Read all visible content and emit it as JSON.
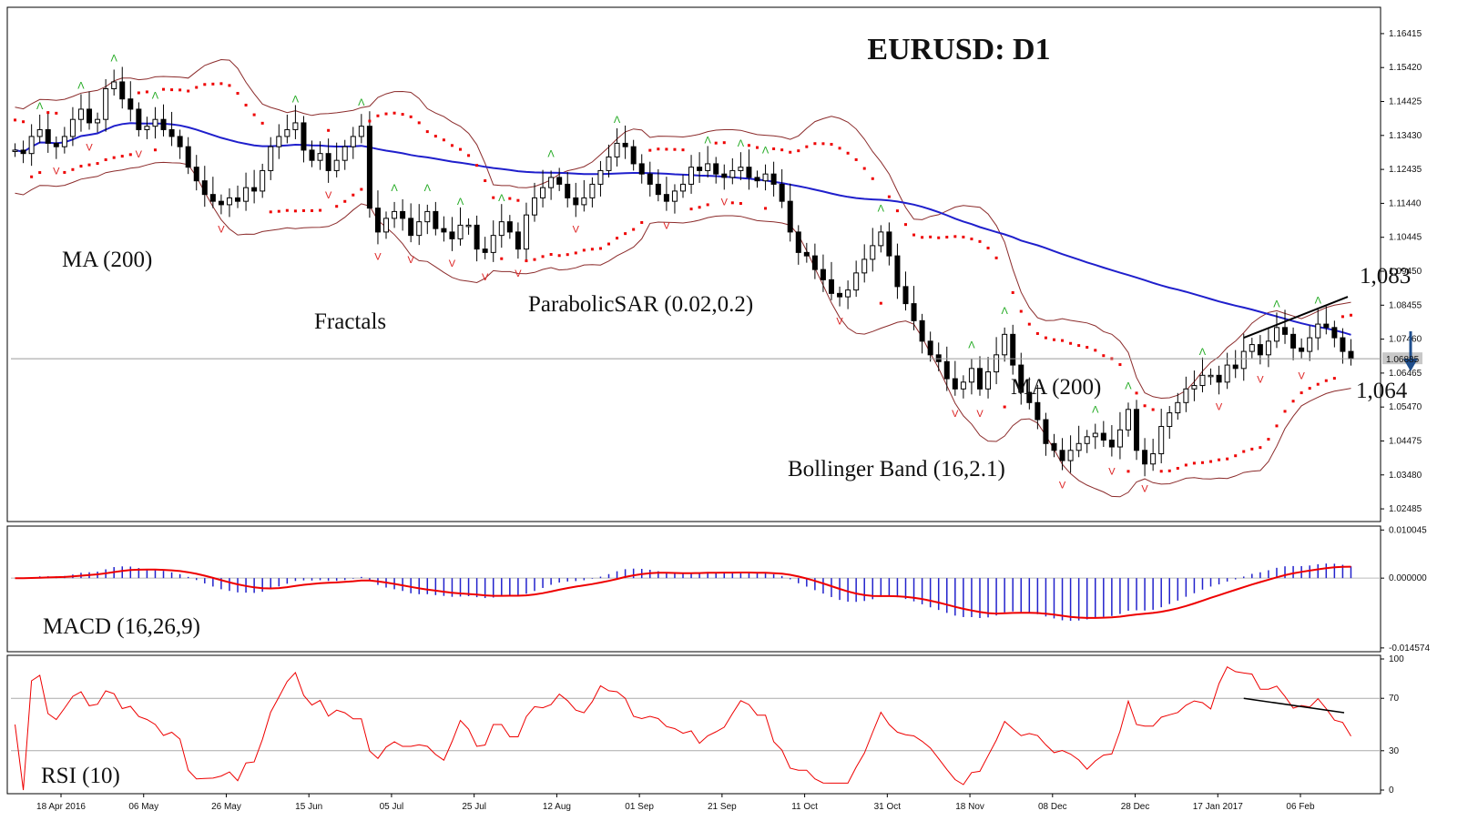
{
  "chart_data": {
    "type": "candlestick",
    "title": "EURUSD: D1",
    "x_ticks": [
      "18 Apr 2016",
      "06 May",
      "26 May",
      "15 Jun",
      "05 Jul",
      "25 Jul",
      "12 Aug",
      "01 Sep",
      "21 Sep",
      "11 Oct",
      "31 Oct",
      "18 Nov",
      "08 Dec",
      "28 Dec",
      "17 Jan 2017",
      "06 Feb"
    ],
    "price_panel": {
      "y_ticks": [
        "1.16415",
        "1.15420",
        "1.14425",
        "1.13430",
        "1.12435",
        "1.11440",
        "1.10445",
        "1.09450",
        "1.08455",
        "1.07460",
        "1.06465",
        "1.05470",
        "1.04475",
        "1.03480",
        "1.02485"
      ],
      "ylim": [
        1.0222,
        1.1708
      ],
      "current_price_label": "1.06885",
      "current_price": 1.06885,
      "closes": [
        1.13,
        1.129,
        1.134,
        1.136,
        1.132,
        1.131,
        1.134,
        1.139,
        1.142,
        1.138,
        1.139,
        1.148,
        1.15,
        1.145,
        1.142,
        1.136,
        1.137,
        1.139,
        1.136,
        1.134,
        1.131,
        1.125,
        1.121,
        1.117,
        1.115,
        1.114,
        1.116,
        1.115,
        1.119,
        1.118,
        1.124,
        1.131,
        1.134,
        1.136,
        1.138,
        1.13,
        1.127,
        1.129,
        1.124,
        1.127,
        1.131,
        1.134,
        1.137,
        1.113,
        1.106,
        1.11,
        1.112,
        1.11,
        1.105,
        1.109,
        1.112,
        1.107,
        1.106,
        1.104,
        1.108,
        1.108,
        1.101,
        1.1,
        1.105,
        1.109,
        1.106,
        1.101,
        1.111,
        1.116,
        1.119,
        1.122,
        1.12,
        1.116,
        1.114,
        1.116,
        1.12,
        1.124,
        1.128,
        1.132,
        1.131,
        1.126,
        1.123,
        1.12,
        1.117,
        1.115,
        1.118,
        1.12,
        1.125,
        1.124,
        1.126,
        1.123,
        1.122,
        1.124,
        1.125,
        1.122,
        1.121,
        1.123,
        1.12,
        1.115,
        1.106,
        1.1,
        1.099,
        1.095,
        1.092,
        1.088,
        1.087,
        1.089,
        1.094,
        1.098,
        1.102,
        1.106,
        1.099,
        1.09,
        1.085,
        1.08,
        1.074,
        1.07,
        1.068,
        1.063,
        1.06,
        1.062,
        1.066,
        1.06,
        1.065,
        1.07,
        1.076,
        1.067,
        1.059,
        1.056,
        1.051,
        1.044,
        1.042,
        1.039,
        1.042,
        1.044,
        1.046,
        1.047,
        1.045,
        1.043,
        1.048,
        1.054,
        1.042,
        1.038,
        1.041,
        1.049,
        1.053,
        1.056,
        1.06,
        1.061,
        1.064,
        1.064,
        1.062,
        1.067,
        1.066,
        1.071,
        1.073,
        1.07,
        1.074,
        1.078,
        1.076,
        1.072,
        1.071,
        1.075,
        1.079,
        1.078,
        1.075,
        1.071,
        1.06885
      ],
      "ma200_label": "MA (200)",
      "ma200_inner_label": "MA (200)",
      "fractals_label": "Fractals",
      "sar_label": "ParabolicSAR (0.02,0.2)",
      "bollinger_label": "Bollinger Band (16,2.1)",
      "resistance_label": "1,083",
      "support_label": "1,064",
      "resistance_value": 1.083,
      "support_value": 1.064,
      "signal": "down-arrow"
    },
    "macd_panel": {
      "label": "MACD (16,26,9)",
      "y_ticks": [
        "0.010045",
        "0.000000",
        "-0.014574"
      ],
      "ylim": [
        -0.0146,
        0.0101
      ]
    },
    "rsi_panel": {
      "label": "RSI (10)",
      "y_ticks": [
        "100",
        "70",
        "30",
        "0"
      ],
      "ylim": [
        0,
        100
      ],
      "levels": [
        70,
        30
      ]
    },
    "colors": {
      "ma": "#1f1fcc",
      "sar": "#ee0000",
      "bollinger": "#8b2b2b",
      "fractal_up": "#22aa22",
      "fractal_down": "#dd2222",
      "macd_hist": "#2222cc",
      "macd_signal": "#ee0000",
      "rsi": "#ee0000",
      "trend": "#000000",
      "arrow": "#1f4e8c"
    }
  }
}
